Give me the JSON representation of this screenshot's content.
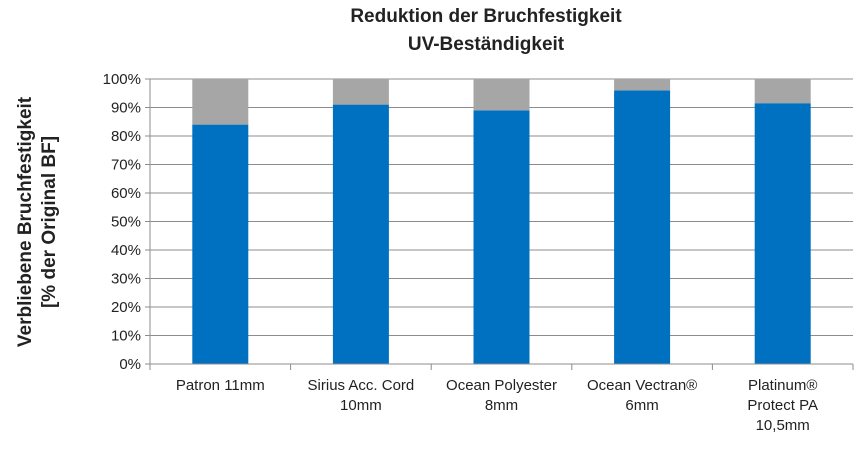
{
  "chart_data": {
    "type": "bar",
    "stacked": true,
    "title_line1": "Reduktion der Bruchfestigkeit",
    "title_line2": "UV-Beständigkeit",
    "ylabel_line1": "Verbliebene Bruchfestigkeit",
    "ylabel_line2": "[% der Original BF]",
    "xlabel": "",
    "ylim": [
      0,
      100
    ],
    "y_ticks": [
      "0%",
      "10%",
      "20%",
      "30%",
      "40%",
      "50%",
      "60%",
      "70%",
      "80%",
      "90%",
      "100%"
    ],
    "grid": true,
    "legend": "none",
    "categories": [
      [
        "Patron 11mm"
      ],
      [
        "Sirius Acc. Cord",
        "10mm"
      ],
      [
        "Ocean Polyester",
        "8mm"
      ],
      [
        "Ocean Vectran®",
        "6mm"
      ],
      [
        "Platinum®",
        "Protect PA",
        "10,5mm"
      ]
    ],
    "series": [
      {
        "values": [
          84,
          91,
          89,
          96,
          91.5
        ],
        "color": "#0070c0"
      },
      {
        "values": [
          16,
          9,
          11,
          4,
          8.5
        ],
        "color": "#a6a6a6"
      }
    ]
  }
}
